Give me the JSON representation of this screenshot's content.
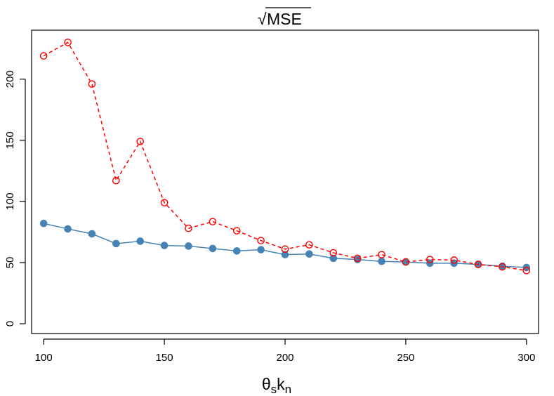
{
  "chart_data": {
    "type": "line",
    "title": "MSE",
    "title_radical": "√",
    "xlabel": {
      "base1": "θ",
      "sub1": "s",
      "base2": "k",
      "sub2": "n"
    },
    "ylabel": "",
    "xlim": [
      95,
      305
    ],
    "ylim": [
      -8,
      240
    ],
    "x_ticks": [
      100,
      150,
      200,
      250,
      300
    ],
    "x_tick_labels": [
      "100",
      "150",
      "200",
      "250",
      "300"
    ],
    "y_ticks": [
      0,
      50,
      100,
      150,
      200
    ],
    "y_tick_labels": [
      "0",
      "50",
      "100",
      "150",
      "200"
    ],
    "grid": false,
    "legend": "none",
    "x": [
      100,
      110,
      120,
      130,
      140,
      150,
      160,
      170,
      180,
      190,
      200,
      210,
      220,
      230,
      240,
      250,
      260,
      270,
      280,
      290,
      300
    ],
    "series": [
      {
        "style": "solid",
        "color": "#4682B4",
        "marker": "filled-circle",
        "values": [
          82,
          77.5,
          73.5,
          65.5,
          67.5,
          64,
          63.5,
          61.5,
          59.5,
          60.5,
          56.5,
          57,
          53.5,
          52.5,
          51,
          50.5,
          49.5,
          49.5,
          48.5,
          47,
          46
        ]
      },
      {
        "style": "dashed",
        "color": "#FF0000",
        "marker": "open-circle",
        "values": [
          219,
          230,
          196,
          117,
          149,
          99,
          78,
          83.5,
          76,
          68,
          61,
          64.5,
          58,
          53.5,
          56.5,
          50.5,
          52.5,
          52,
          48.5,
          46.5,
          43.5
        ]
      }
    ]
  }
}
